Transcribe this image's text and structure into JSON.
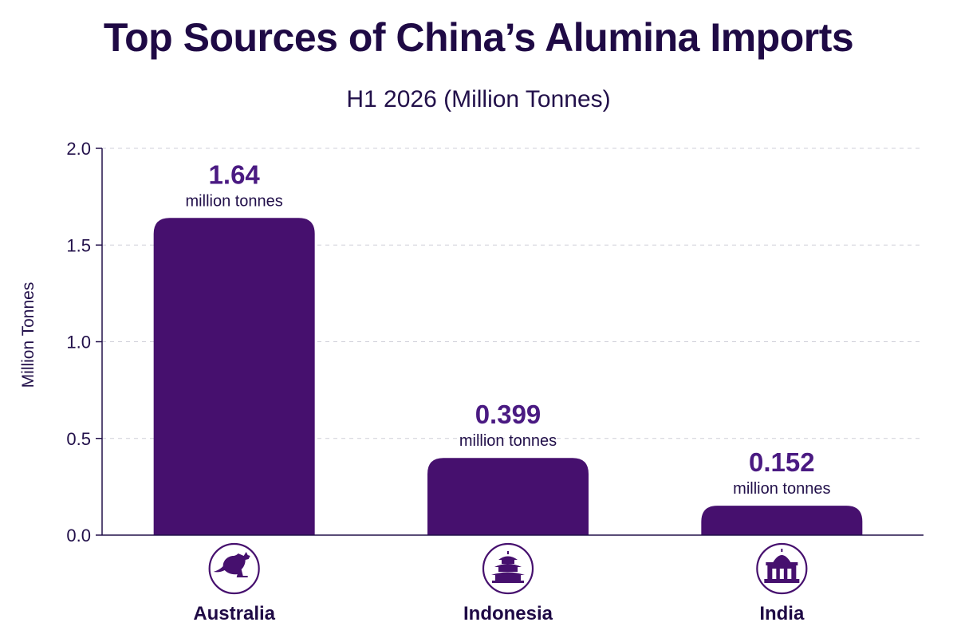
{
  "chart_data": {
    "type": "bar",
    "title": "Top Sources of China’s Alumina Imports",
    "subtitle": "H1 2026 (Million Tonnes)",
    "ylabel": "Million Tonnes",
    "xlabel": "",
    "ylim": [
      0,
      2.0
    ],
    "yticks": [
      "0.0",
      "0.5",
      "1.0",
      "1.5",
      "2.0"
    ],
    "grid": true,
    "categories": [
      "Australia",
      "Indonesia",
      "India"
    ],
    "values": [
      1.64,
      0.399,
      0.152
    ],
    "value_labels": [
      "1.64",
      "0.399",
      "0.152"
    ],
    "unit_label": "million tonnes",
    "category_icons": [
      "kangaroo-icon",
      "temple-icon",
      "monument-icon"
    ],
    "colors": {
      "bar": "#46106e",
      "value_text": "#4a1a82",
      "axis": "#22104a",
      "grid": "#cfcfd8"
    }
  }
}
